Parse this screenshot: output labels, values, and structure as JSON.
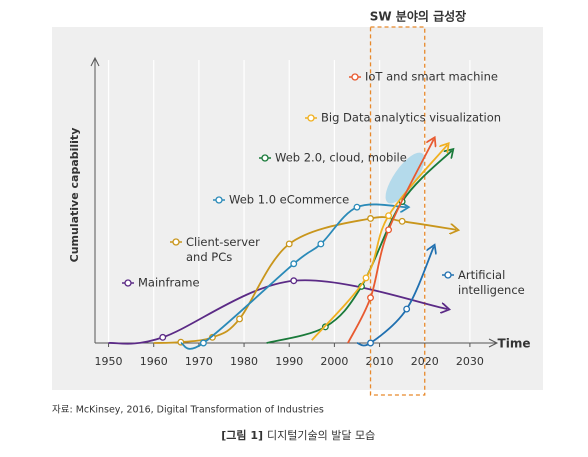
{
  "chart_data": {
    "type": "line",
    "x_label": "Time",
    "y_label": "Cumulative capability",
    "highlight_label": "SW 분야의 급성장",
    "highlight_range": [
      2008,
      2020
    ],
    "xlim": [
      1947,
      2036
    ],
    "ylim": [
      0,
      100
    ],
    "xticks": [
      1950,
      1960,
      1970,
      1980,
      1990,
      2000,
      2010,
      2020,
      2030
    ],
    "grid": true,
    "series": [
      {
        "name": "Mainframe",
        "color": "#5b2a86",
        "x": [
          1950,
          1962,
          1991,
          2025
        ],
        "values": [
          0,
          2,
          22,
          12
        ]
      },
      {
        "name": "Client-server\nand PCs",
        "color": "#c9961c",
        "x": [
          1960,
          1966,
          1973,
          1979,
          1990,
          2008,
          2015,
          2027
        ],
        "values": [
          0,
          0.3,
          2,
          8.5,
          35,
          44,
          43,
          40
        ]
      },
      {
        "name": "Web 1.0 eCommerce",
        "color": "#2a8ab8",
        "x": [
          1966,
          1971,
          1991,
          1997,
          2005,
          2016
        ],
        "values": [
          0,
          0,
          28,
          35,
          48,
          48
        ]
      },
      {
        "name": "Web 2.0, cloud, mobile",
        "color": "#1a7a3a",
        "x": [
          1985,
          1998,
          2006,
          2015,
          2026
        ],
        "values": [
          0,
          5.7,
          20,
          50,
          68
        ]
      },
      {
        "name": "Big Data analytics visualization",
        "color": "#f0b020",
        "x": [
          1995,
          2007,
          2012,
          2025
        ],
        "values": [
          1,
          23,
          45,
          70
        ]
      },
      {
        "name": "IoT and smart machine",
        "color": "#e85a30",
        "x": [
          2003,
          2008,
          2012,
          2022
        ],
        "values": [
          0,
          16,
          40,
          72
        ]
      },
      {
        "name": "Artificial\nintelligence",
        "color": "#2070b0",
        "x": [
          2005,
          2008,
          2016,
          2022
        ],
        "values": [
          0,
          0,
          12,
          34
        ]
      }
    ]
  },
  "source": "자료: McKinsey, 2016, Digital Transformation of Industries",
  "caption_label": "[그림 1]",
  "caption_text": "디지털기술의 발달 모습"
}
